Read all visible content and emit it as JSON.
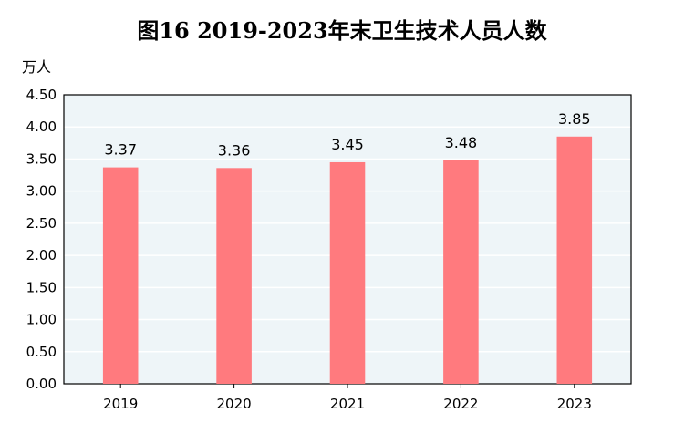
{
  "chart_data": {
    "type": "bar",
    "title": "图16  2019-2023年末卫生技术人员人数",
    "unit_label": "万人",
    "categories": [
      "2019",
      "2020",
      "2021",
      "2022",
      "2023"
    ],
    "values": [
      3.37,
      3.36,
      3.45,
      3.48,
      3.85
    ],
    "data_labels": [
      "3.37",
      "3.36",
      "3.45",
      "3.48",
      "3.85"
    ],
    "ylim": [
      0,
      4.5
    ],
    "yticks": [
      "0.00",
      "0.50",
      "1.00",
      "1.50",
      "2.00",
      "2.50",
      "3.00",
      "3.50",
      "4.00",
      "4.50"
    ],
    "grid": true,
    "bar_color": "#ff7a7e",
    "plot_background": "#eef5f8",
    "grid_color": "#ffffff"
  }
}
